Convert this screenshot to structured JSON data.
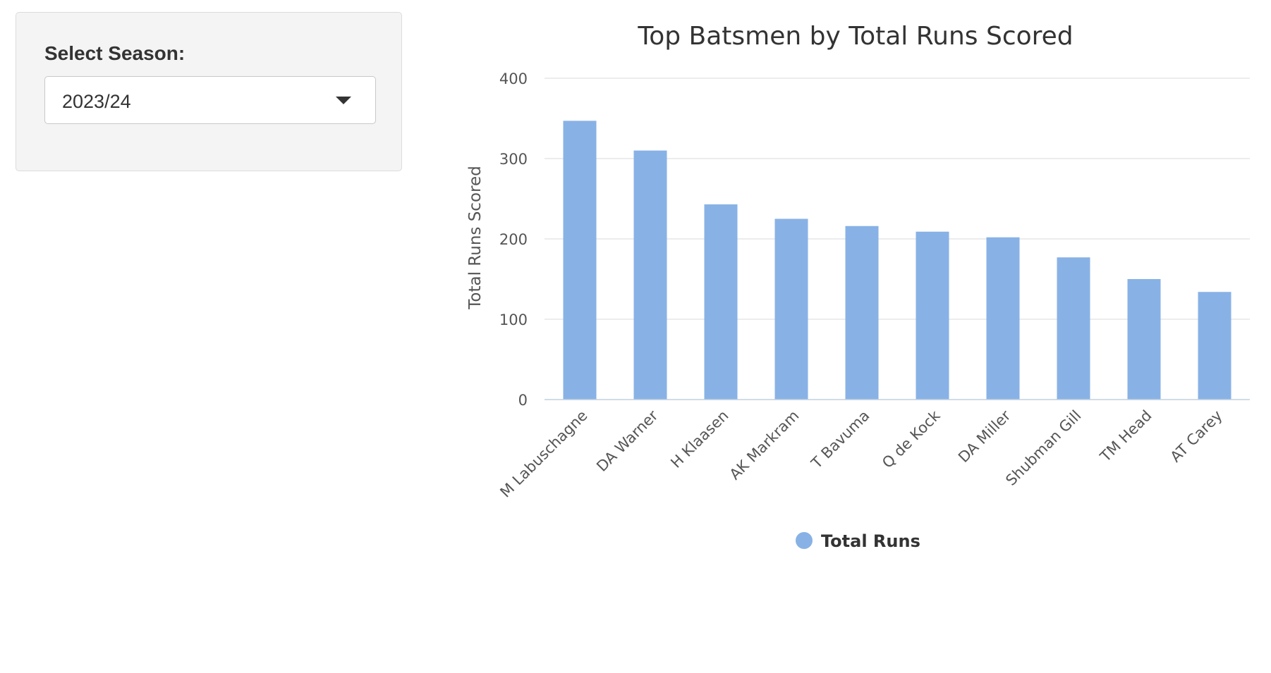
{
  "sidebar": {
    "label": "Select Season:",
    "selected_value": "2023/24"
  },
  "chart_data": {
    "type": "bar",
    "title": "Top Batsmen by Total Runs Scored",
    "xlabel": "",
    "ylabel": "Total Runs Scored",
    "ylim": [
      0,
      400
    ],
    "yticks": [
      0,
      100,
      200,
      300,
      400
    ],
    "grid": true,
    "legend_position": "bottom-center",
    "categories": [
      "M Labuschagne",
      "DA Warner",
      "H Klaasen",
      "AK Markram",
      "T Bavuma",
      "Q de Kock",
      "DA Miller",
      "Shubman Gill",
      "TM Head",
      "AT Carey"
    ],
    "series": [
      {
        "name": "Total Runs",
        "color": "#88b2e6",
        "values": [
          347,
          310,
          243,
          225,
          216,
          209,
          202,
          177,
          150,
          134
        ]
      }
    ]
  }
}
